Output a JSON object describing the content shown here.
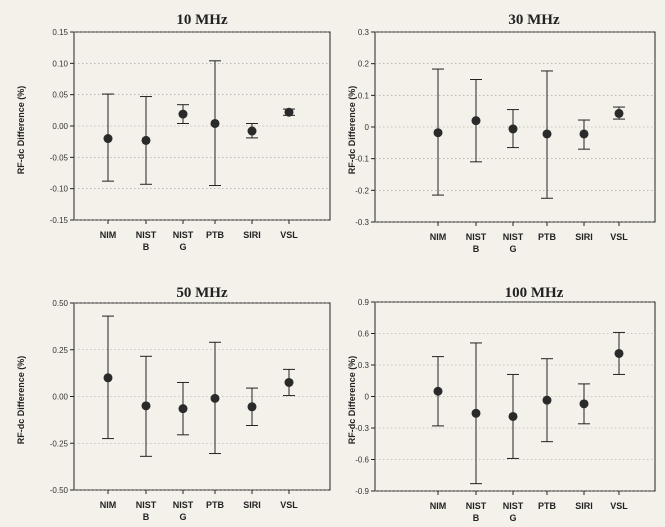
{
  "chart_data": [
    {
      "type": "scatter",
      "title": "10 MHz",
      "ylabel": "RF-dc  Difference  (%)",
      "ylim": [
        -0.15,
        0.15
      ],
      "yticks": [
        "0.15",
        "0.10",
        "0.05",
        "0.00",
        "-0.05",
        "-0.10",
        "-0.15"
      ],
      "categories": [
        [
          "NIM"
        ],
        [
          "NIST",
          "B"
        ],
        [
          "NIST",
          "G"
        ],
        [
          "PTB"
        ],
        [
          "SIRI"
        ],
        [
          "VSL"
        ]
      ],
      "values": [
        -0.02,
        -0.023,
        0.019,
        0.004,
        -0.008,
        0.022
      ],
      "error_low": [
        -0.088,
        -0.093,
        0.004,
        -0.095,
        -0.019,
        0.017
      ],
      "error_high": [
        0.051,
        0.047,
        0.034,
        0.104,
        0.004,
        0.027
      ],
      "grid": "dotted horizontal"
    },
    {
      "type": "scatter",
      "title": "30 MHz",
      "ylabel": "RF-dc  Difference  (%)",
      "ylim": [
        -0.3,
        0.3
      ],
      "yticks": [
        "0.3",
        "0.2",
        "0.1",
        "0",
        "-0.1",
        "-0.2",
        "-0.3"
      ],
      "categories": [
        [
          "NIM"
        ],
        [
          "NIST",
          "B"
        ],
        [
          "NIST",
          "G"
        ],
        [
          "PTB"
        ],
        [
          "SIRI"
        ],
        [
          "VSL"
        ]
      ],
      "values": [
        -0.018,
        0.02,
        -0.006,
        -0.022,
        -0.022,
        0.043
      ],
      "error_low": [
        -0.215,
        -0.11,
        -0.065,
        -0.225,
        -0.07,
        0.025
      ],
      "error_high": [
        0.183,
        0.15,
        0.055,
        0.177,
        0.022,
        0.063
      ],
      "grid": "dotted horizontal"
    },
    {
      "type": "scatter",
      "title": "50 MHz",
      "ylabel": "RF-dc  Difference  (%)",
      "ylim": [
        -0.5,
        0.5
      ],
      "yticks": [
        "0.50",
        "0.25",
        "0.00",
        "-0.25",
        "-0.50"
      ],
      "categories": [
        [
          "NIM"
        ],
        [
          "NIST",
          "B"
        ],
        [
          "NIST",
          "G"
        ],
        [
          "PTB"
        ],
        [
          "SIRI"
        ],
        [
          "VSL"
        ]
      ],
      "values": [
        0.1,
        -0.05,
        -0.065,
        -0.01,
        -0.055,
        0.075
      ],
      "error_low": [
        -0.225,
        -0.32,
        -0.205,
        -0.305,
        -0.155,
        0.005
      ],
      "error_high": [
        0.43,
        0.215,
        0.075,
        0.29,
        0.045,
        0.145
      ],
      "grid": "dotted horizontal"
    },
    {
      "type": "scatter",
      "title": "100 MHz",
      "ylabel": "RF-dc  Difference  (%)",
      "ylim": [
        -0.9,
        0.9
      ],
      "yticks": [
        "0.9",
        "0.6",
        "0.3",
        "0",
        "-0.3",
        "-0.6",
        "-0.9"
      ],
      "categories": [
        [
          "NIM"
        ],
        [
          "NIST",
          "B"
        ],
        [
          "NIST",
          "G"
        ],
        [
          "PTB"
        ],
        [
          "SIRI"
        ],
        [
          "VSL"
        ]
      ],
      "values": [
        0.05,
        -0.16,
        -0.19,
        -0.035,
        -0.07,
        0.41
      ],
      "error_low": [
        -0.28,
        -0.83,
        -0.59,
        -0.43,
        -0.26,
        0.21
      ],
      "error_high": [
        0.38,
        0.51,
        0.21,
        0.36,
        0.12,
        0.61
      ],
      "grid": "dotted horizontal"
    }
  ]
}
